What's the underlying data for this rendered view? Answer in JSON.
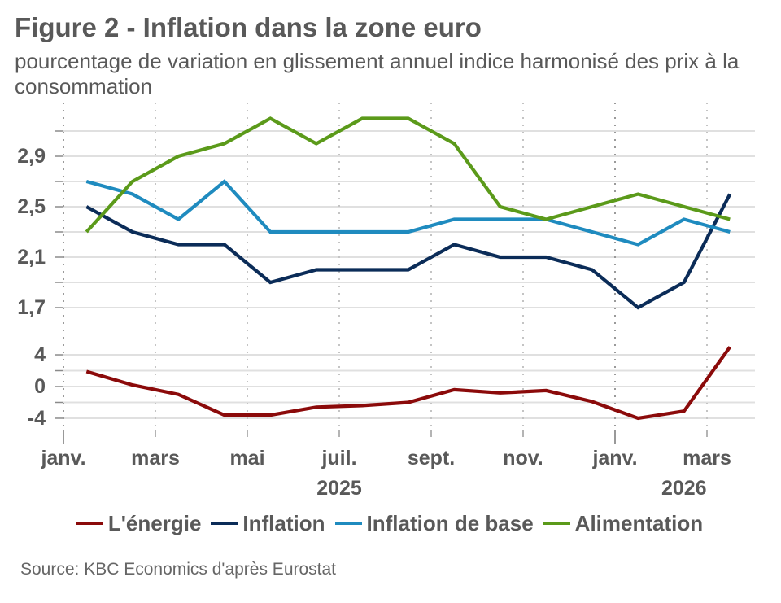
{
  "chart_data": {
    "type": "line",
    "title": "Figure 2 - Inflation dans la zone euro",
    "subtitle": "pourcentage de variation en glissement annuel indice harmonisé des prix à la consommation",
    "xlabel": "",
    "ylabel": "",
    "grid": true,
    "legend_position": "bottom",
    "x": [
      "2025-01",
      "2025-02",
      "2025-03",
      "2025-04",
      "2025-05",
      "2025-06",
      "2025-07",
      "2025-08",
      "2025-09",
      "2025-10",
      "2025-11",
      "2025-12",
      "2026-01",
      "2026-02",
      "2026-03"
    ],
    "xticks": [
      {
        "label": "janv.",
        "month_index": 0
      },
      {
        "label": "mars",
        "month_index": 2
      },
      {
        "label": "mai",
        "month_index": 4
      },
      {
        "label": "juil.",
        "month_index": 6
      },
      {
        "label": "sept.",
        "month_index": 8
      },
      {
        "label": "nov.",
        "month_index": 10
      },
      {
        "label": "janv.",
        "month_index": 12
      },
      {
        "label": "mars",
        "month_index": 14
      }
    ],
    "year_labels": [
      {
        "label": "2025",
        "from_index": 0,
        "to_index": 12
      },
      {
        "label": "2026",
        "from_index": 12,
        "to_index": 15
      }
    ],
    "panels": [
      {
        "name": "upper",
        "ylim": [
          1.65,
          3.33
        ],
        "gridlines": [
          3.1,
          2.9,
          2.7,
          2.5,
          2.3,
          2.1,
          1.9,
          1.7
        ],
        "yticks": [
          2.9,
          2.5,
          2.1,
          1.7
        ],
        "ytick_labels": [
          "2,9",
          "2,5",
          "2,1",
          "1,7"
        ]
      },
      {
        "name": "lower",
        "ylim": [
          -5.5,
          5.5
        ],
        "gridlines": [
          4,
          2,
          0,
          -2,
          -4
        ],
        "yticks": [
          4,
          0,
          -4
        ],
        "ytick_labels": [
          "4",
          "0",
          "-4"
        ]
      }
    ],
    "series": [
      {
        "name": "L'énergie",
        "panel": 1,
        "color": "#8b0a0a",
        "values": [
          1.9,
          0.2,
          -1.0,
          -3.6,
          -3.6,
          -2.6,
          -2.4,
          -2.0,
          -0.4,
          -0.8,
          -0.5,
          -1.9,
          -4.0,
          -3.1,
          5.0
        ]
      },
      {
        "name": "Inflation",
        "panel": 0,
        "color": "#0b2c58",
        "values": [
          2.5,
          2.3,
          2.2,
          2.2,
          1.9,
          2.0,
          2.0,
          2.0,
          2.2,
          2.1,
          2.1,
          2.0,
          1.7,
          1.9,
          2.6
        ]
      },
      {
        "name": "Inflation de base",
        "panel": 0,
        "color": "#1f8bbf",
        "values": [
          2.7,
          2.6,
          2.4,
          2.7,
          2.3,
          2.3,
          2.3,
          2.3,
          2.4,
          2.4,
          2.4,
          2.3,
          2.2,
          2.4,
          2.3
        ]
      },
      {
        "name": "Alimentation",
        "panel": 0,
        "color": "#5b9a1a",
        "values": [
          2.3,
          2.7,
          2.9,
          3.0,
          3.2,
          3.0,
          3.2,
          3.2,
          3.0,
          2.5,
          2.4,
          2.5,
          2.6,
          2.5,
          2.4
        ]
      }
    ],
    "source": "Source: KBC Economics d'après Eurostat"
  }
}
